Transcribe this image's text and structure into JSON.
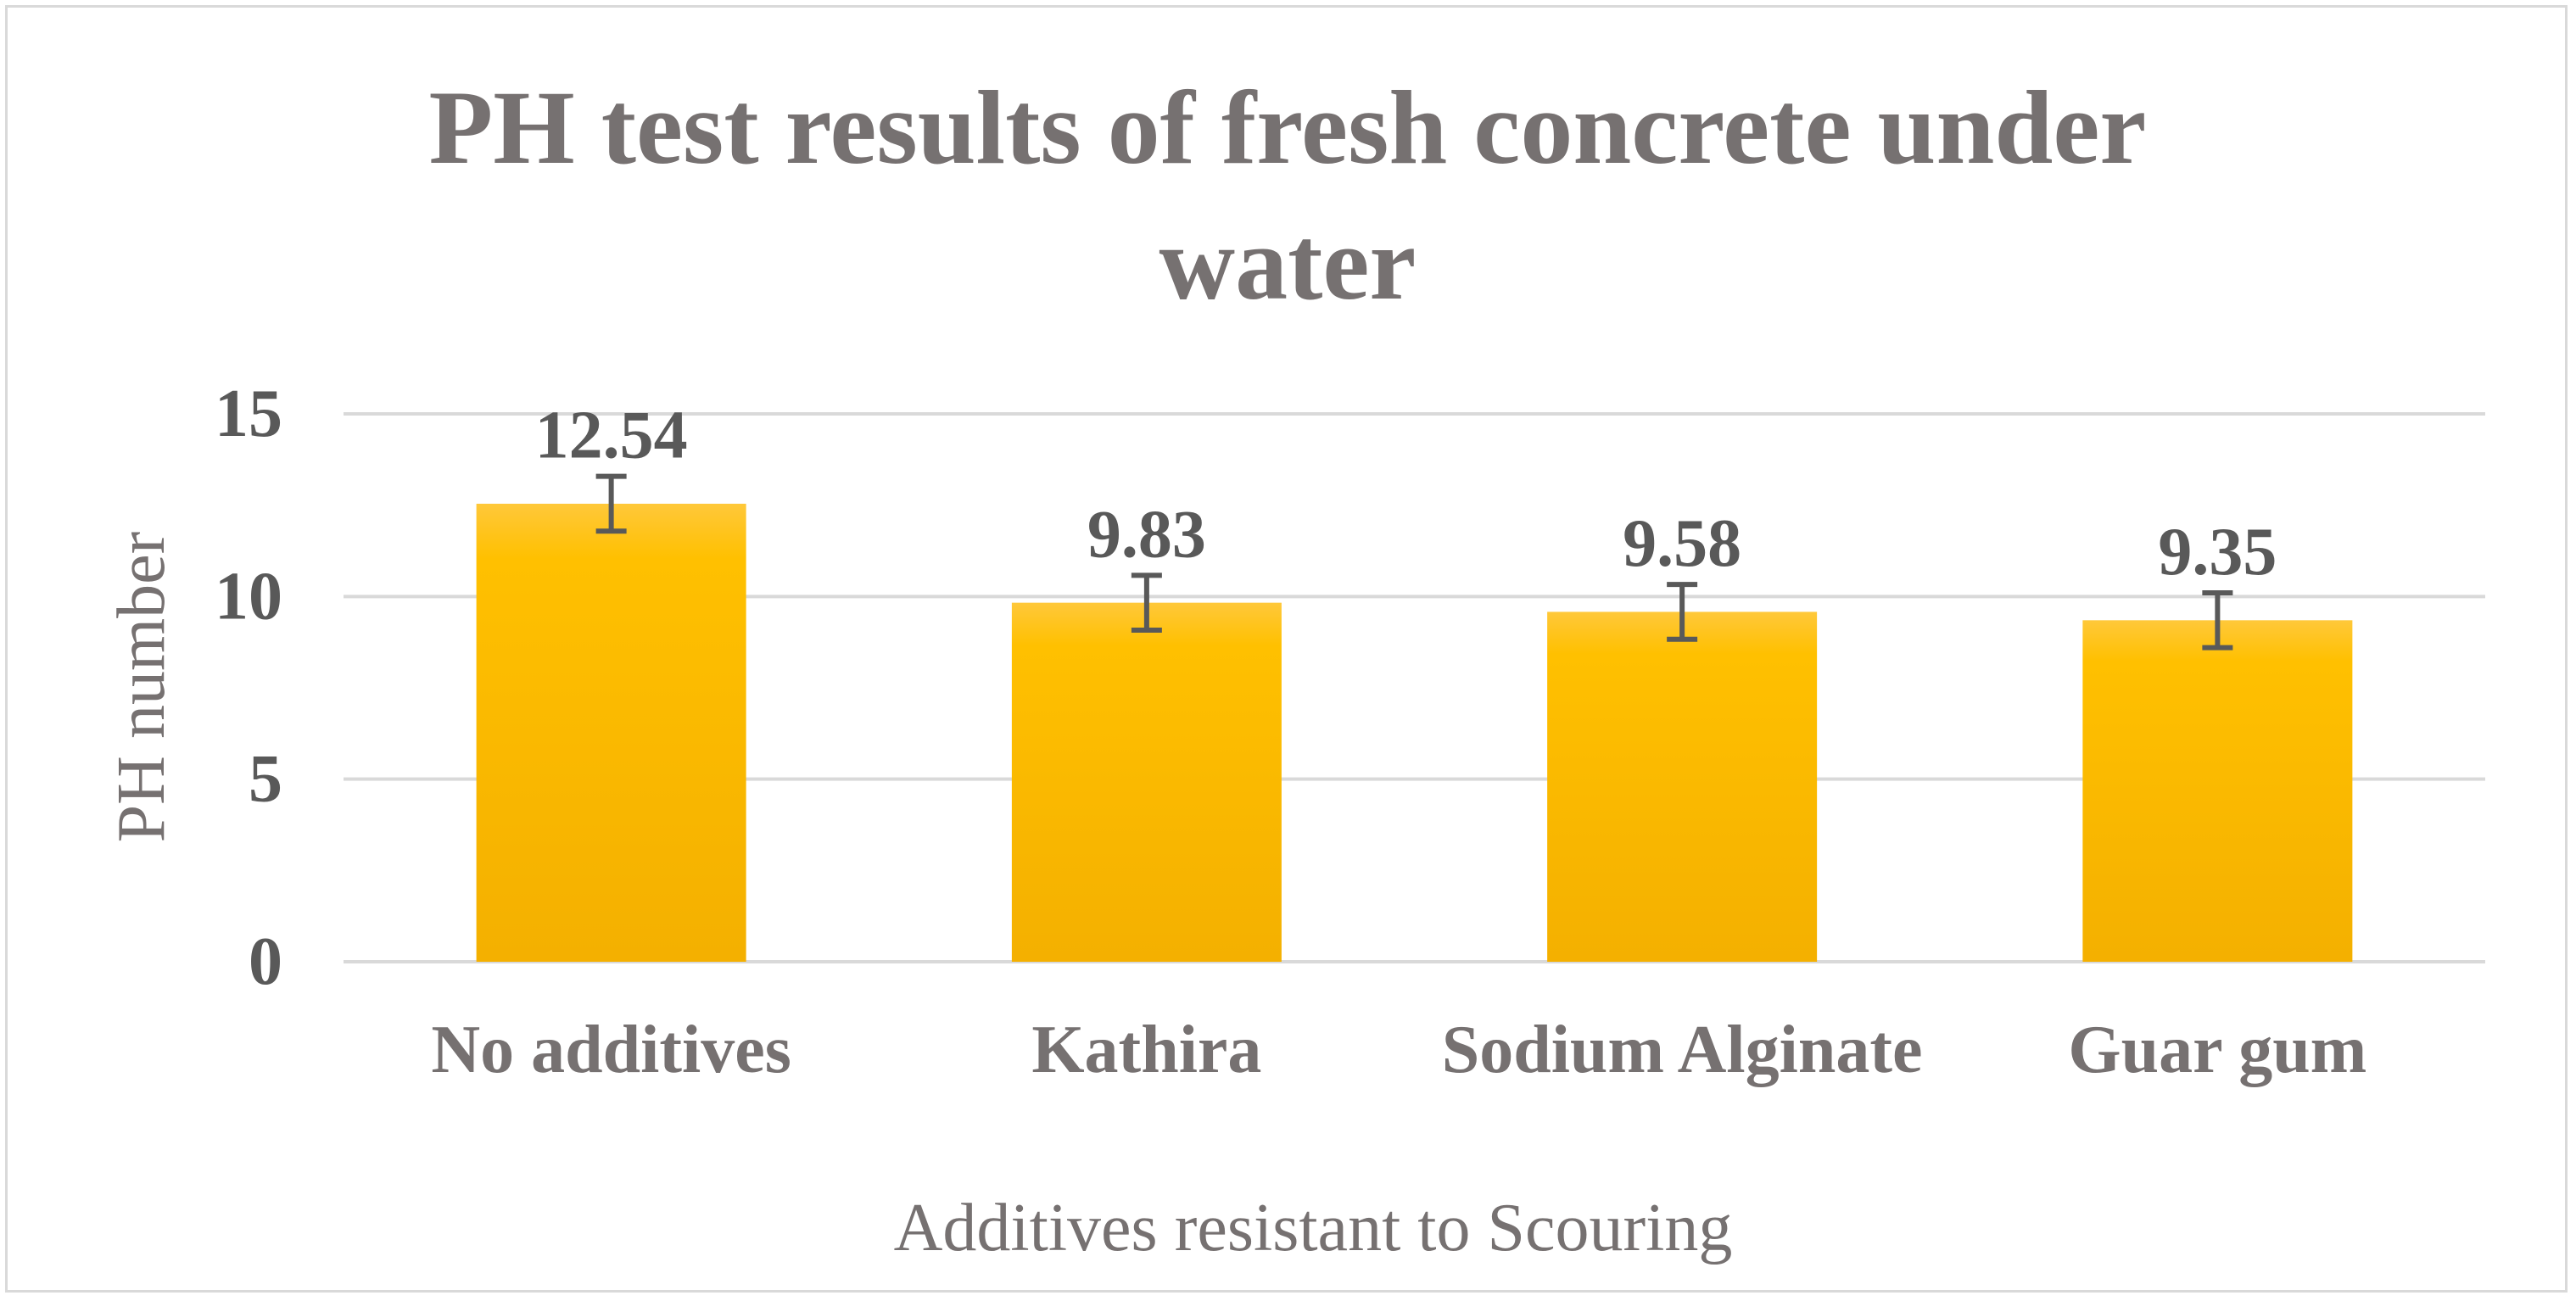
{
  "chart_data": {
    "type": "bar",
    "title_lines": [
      "PH test results of fresh concrete under",
      "water"
    ],
    "xlabel": "Additives resistant to Scouring",
    "ylabel": "PH number",
    "categories": [
      "No additives",
      "Kathira",
      "Sodium Alginate",
      "Guar gum"
    ],
    "values": [
      12.54,
      9.83,
      9.58,
      9.35
    ],
    "data_labels": [
      "12.54",
      "9.83",
      "9.58",
      "9.35"
    ],
    "error": [
      0.75,
      0.75,
      0.75,
      0.75
    ],
    "ylim": [
      0,
      15
    ],
    "yticks": [
      "0",
      "5",
      "10",
      "15"
    ],
    "grid": true,
    "legend": "none",
    "colors": {
      "bar_top": "#ffc83a",
      "bar_mid": "#ffc000",
      "bar_bottom": "#f4b000",
      "text": "#767171",
      "label": "#595959",
      "grid": "#d9d9d9",
      "error_bar": "#595959"
    }
  }
}
